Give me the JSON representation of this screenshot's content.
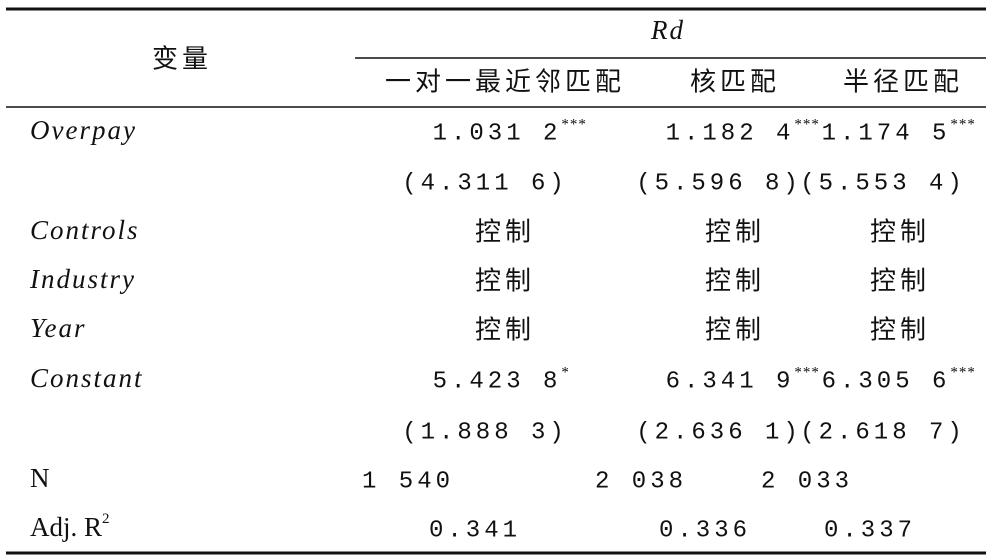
{
  "header": {
    "variable": "变量",
    "dependent": "Rd",
    "columns": [
      "一对一最近邻匹配",
      "核匹配",
      "半径匹配"
    ]
  },
  "table": {
    "rows": [
      {
        "label": "Overpay",
        "cells": [
          {
            "value": "1.031 2",
            "stars": "***"
          },
          {
            "value": "1.182 4",
            "stars": "***"
          },
          {
            "value": "1.174 5",
            "stars": "***"
          }
        ]
      },
      {
        "cells": [
          {
            "value": "(4.311 6)"
          },
          {
            "value": "(5.596 8)"
          },
          {
            "value": "(5.553 4)"
          }
        ]
      },
      {
        "label": "Controls",
        "cells": [
          {
            "value": "控制"
          },
          {
            "value": "控制"
          },
          {
            "value": "控制"
          }
        ]
      },
      {
        "label": "Industry",
        "cells": [
          {
            "value": "控制"
          },
          {
            "value": "控制"
          },
          {
            "value": "控制"
          }
        ]
      },
      {
        "label": "Year",
        "cells": [
          {
            "value": "控制"
          },
          {
            "value": "控制"
          },
          {
            "value": "控制"
          }
        ]
      },
      {
        "label": "Constant",
        "cells": [
          {
            "value": "5.423 8",
            "stars": "*"
          },
          {
            "value": "6.341 9",
            "stars": "***"
          },
          {
            "value": "6.305 6",
            "stars": "***"
          }
        ]
      },
      {
        "cells": [
          {
            "value": "(1.888 3)"
          },
          {
            "value": "(2.636 1)"
          },
          {
            "value": "(2.618 7)"
          }
        ]
      },
      {
        "label": "N",
        "cells": [
          {
            "value": "1 540"
          },
          {
            "value": "2 038"
          },
          {
            "value": "2 033"
          }
        ]
      },
      {
        "label": "Adj. R",
        "label_sup": "2",
        "cells": [
          {
            "value": "0.341"
          },
          {
            "value": "0.336"
          },
          {
            "value": "0.337"
          }
        ]
      }
    ]
  }
}
